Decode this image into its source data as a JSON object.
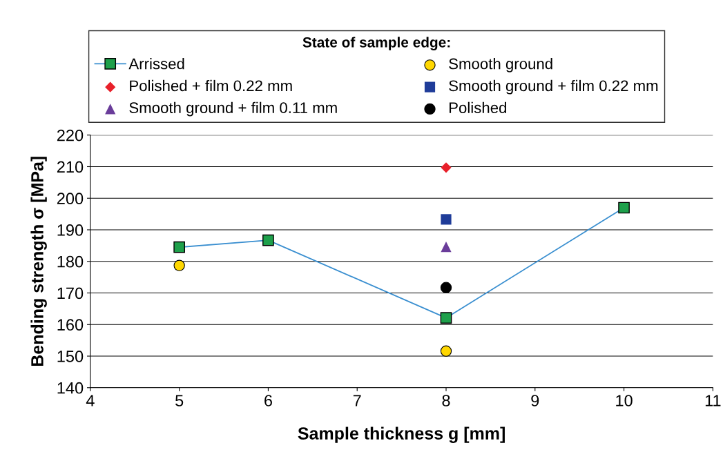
{
  "chart_data": {
    "type": "scatter",
    "xlabel": "Sample thickness g [mm]",
    "ylabel": "Bending strength σ [MPa]",
    "legend_title": "State of sample edge:",
    "legend": "top",
    "grid": "y",
    "xlim": [
      4,
      11
    ],
    "xticks": [
      4,
      5,
      6,
      7,
      8,
      9,
      10,
      11
    ],
    "ylim": [
      140,
      220
    ],
    "yticks": [
      140,
      150,
      160,
      170,
      180,
      190,
      200,
      210,
      220
    ],
    "series": [
      {
        "name": "Arrissed",
        "type": "line",
        "color": "#3a8fd0",
        "colors": [
          "#1ea04b",
          "#1ea04b",
          "#1ea04b",
          "#1ea04b"
        ],
        "marker": "square",
        "x": [
          5,
          6,
          8,
          10
        ],
        "values": [
          184.5,
          186.7,
          162.1,
          197.0
        ]
      },
      {
        "name": "Smooth ground",
        "color": "#ffd700",
        "marker": "circle",
        "x": [
          5,
          8
        ],
        "values": [
          178.7,
          151.6
        ]
      },
      {
        "name": "Polished + film 0.22 mm",
        "color": "#e8202a",
        "marker": "diamond",
        "x": [
          8
        ],
        "values": [
          209.7
        ]
      },
      {
        "name": "Smooth ground + film 0.22 mm",
        "color": "#1f3c99",
        "marker": "square",
        "x": [
          8
        ],
        "values": [
          193.3
        ]
      },
      {
        "name": "Smooth ground + film 0.11 mm",
        "color": "#6a3d9a",
        "marker": "triangle",
        "x": [
          8
        ],
        "values": [
          184.6
        ]
      },
      {
        "name": "Polished",
        "color": "#000000",
        "marker": "circle",
        "x": [
          8
        ],
        "values": [
          171.7
        ]
      }
    ]
  }
}
